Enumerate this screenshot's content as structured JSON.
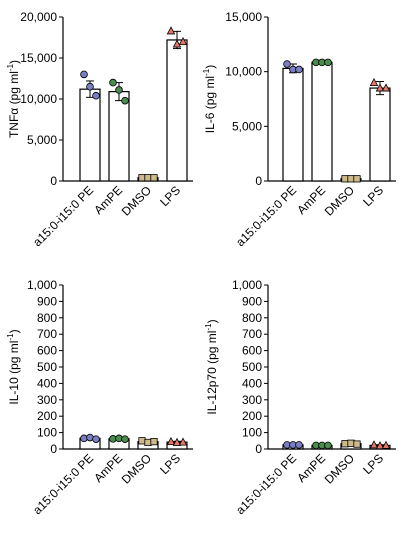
{
  "chart_data": [
    {
      "type": "bar",
      "ylabel": "TNFα (pg ml⁻¹)",
      "ylim": [
        0,
        20000
      ],
      "yticks": [
        0,
        5000,
        10000,
        15000,
        20000
      ],
      "ytick_labels": [
        "0",
        "5,000",
        "10,000",
        "15,000",
        "20,000"
      ],
      "categories": [
        "a15:0-i15:0 PE",
        "AmPE",
        "DMSO",
        "LPS"
      ],
      "values": [
        11200,
        10900,
        400,
        17200
      ],
      "errors": [
        1000,
        1100,
        50,
        1050
      ],
      "points": [
        [
          13000,
          11500,
          10400
        ],
        [
          12000,
          11100,
          9800
        ],
        [
          400,
          400,
          400
        ],
        [
          18300,
          16700,
          17000
        ]
      ],
      "point_shapes": [
        "circle",
        "circle",
        "square",
        "triangle"
      ],
      "point_colors": [
        "#7a7fc2",
        "#4a8c4e",
        "#cdb98a",
        "#e8776b"
      ]
    },
    {
      "type": "bar",
      "ylabel": "IL-6 (pg ml⁻¹)",
      "ylim": [
        0,
        15000
      ],
      "yticks": [
        0,
        5000,
        10000,
        15000
      ],
      "ytick_labels": [
        "0",
        "5,000",
        "10,000",
        "15,000"
      ],
      "categories": [
        "a15:0-i15:0 PE",
        "AmPE",
        "DMSO",
        "LPS"
      ],
      "values": [
        10300,
        10850,
        200,
        8500
      ],
      "errors": [
        400,
        100,
        20,
        600
      ],
      "points": [
        [
          10700,
          10200,
          10200
        ],
        [
          10850,
          10850,
          10850
        ],
        [
          200,
          200,
          200
        ],
        [
          9000,
          8500,
          8500
        ]
      ],
      "point_shapes": [
        "circle",
        "circle",
        "square",
        "triangle"
      ],
      "point_colors": [
        "#7a7fc2",
        "#4a8c4e",
        "#cdb98a",
        "#e8776b"
      ]
    },
    {
      "type": "bar",
      "ylabel": "IL-10 (pg ml⁻¹)",
      "ylim": [
        0,
        1000
      ],
      "yticks": [
        0,
        100,
        200,
        300,
        400,
        500,
        600,
        700,
        800,
        900,
        1000
      ],
      "ytick_labels": [
        "0",
        "100",
        "200",
        "300",
        "400",
        "500",
        "600",
        "700",
        "800",
        "900",
        "1,000"
      ],
      "categories": [
        "a15:0-i15:0 PE",
        "AmPE",
        "DMSO",
        "LPS"
      ],
      "values": [
        65,
        62,
        45,
        42
      ],
      "errors": [
        5,
        5,
        8,
        5
      ],
      "points": [
        [
          65,
          70,
          60
        ],
        [
          62,
          65,
          60
        ],
        [
          50,
          40,
          45
        ],
        [
          45,
          40,
          42
        ]
      ],
      "point_shapes": [
        "circle",
        "circle",
        "square",
        "triangle"
      ],
      "point_colors": [
        "#7a7fc2",
        "#4a8c4e",
        "#cdb98a",
        "#e8776b"
      ]
    },
    {
      "type": "bar",
      "ylabel": "IL-12p70 (pg ml⁻¹)",
      "ylim": [
        0,
        1000
      ],
      "yticks": [
        0,
        100,
        200,
        300,
        400,
        500,
        600,
        700,
        800,
        900,
        1000
      ],
      "ytick_labels": [
        "0",
        "100",
        "200",
        "300",
        "400",
        "500",
        "600",
        "700",
        "800",
        "900",
        "1,000"
      ],
      "categories": [
        "a15:0-i15:0 PE",
        "AmPE",
        "DMSO",
        "LPS"
      ],
      "values": [
        25,
        22,
        32,
        22
      ],
      "errors": [
        3,
        3,
        4,
        4
      ],
      "points": [
        [
          25,
          25,
          25
        ],
        [
          22,
          22,
          22
        ],
        [
          32,
          35,
          30
        ],
        [
          25,
          20,
          22
        ]
      ],
      "point_shapes": [
        "circle",
        "circle",
        "square",
        "triangle"
      ],
      "point_colors": [
        "#7a7fc2",
        "#4a8c4e",
        "#cdb98a",
        "#e8776b"
      ]
    }
  ]
}
